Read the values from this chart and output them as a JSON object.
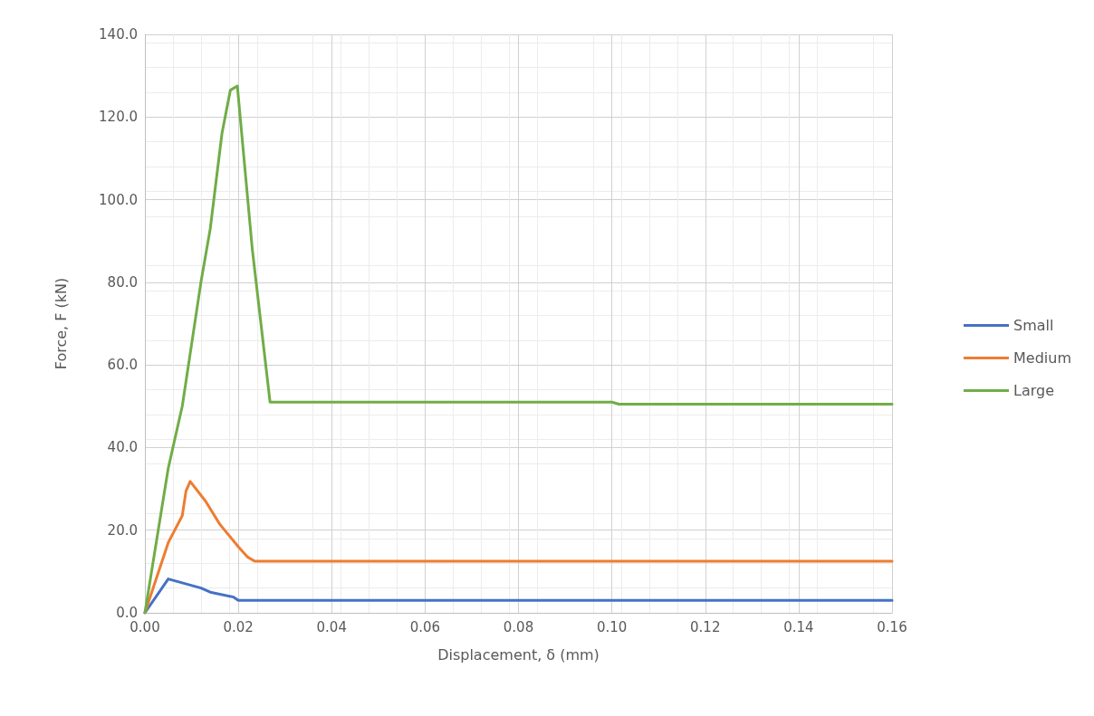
{
  "chart_data": {
    "type": "line",
    "xlabel": "Displacement, δ (mm)",
    "ylabel": "Force, F (kN)",
    "xlim": [
      0,
      0.16
    ],
    "xticks": [
      {
        "value": 0,
        "label": "0.00"
      },
      {
        "value": 0.02,
        "label": "0.02"
      },
      {
        "value": 0.04,
        "label": "0.04"
      },
      {
        "value": 0.06,
        "label": "0.06"
      },
      {
        "value": 0.08,
        "label": "0.08"
      },
      {
        "value": 0.1,
        "label": "0.10"
      },
      {
        "value": 0.12,
        "label": "0.12"
      },
      {
        "value": 0.14,
        "label": "0.14"
      },
      {
        "value": 0.16,
        "label": "0.16"
      }
    ],
    "ylim": [
      0,
      140
    ],
    "yticks": [
      {
        "value": 0,
        "label": "0.0"
      },
      {
        "value": 20,
        "label": "20.0"
      },
      {
        "value": 40,
        "label": "40.0"
      },
      {
        "value": 60,
        "label": "60.0"
      },
      {
        "value": 80,
        "label": "80.0"
      },
      {
        "value": 100,
        "label": "100.0"
      },
      {
        "value": 120,
        "label": "120.0"
      },
      {
        "value": 140,
        "label": "140.0"
      }
    ],
    "grid": true,
    "legend": "right",
    "marker": "none",
    "line_style": "solid",
    "series": [
      {
        "name": "Small",
        "color": "#4472c4",
        "x": [
          0,
          0.005,
          0.012,
          0.014,
          0.019,
          0.02,
          0.16
        ],
        "values": [
          0,
          8.2,
          6,
          5,
          3.8,
          3,
          3
        ]
      },
      {
        "name": "Medium",
        "color": "#ed7d31",
        "x": [
          0,
          0.005,
          0.008,
          0.0088,
          0.0097,
          0.013,
          0.016,
          0.02,
          0.022,
          0.0235,
          0.16
        ],
        "values": [
          0,
          17,
          23.5,
          29.5,
          31.8,
          27,
          21.5,
          16,
          13.5,
          12.5,
          12.5
        ]
      },
      {
        "name": "Large",
        "color": "#70ad47",
        "x": [
          0,
          0.005,
          0.008,
          0.012,
          0.014,
          0.0165,
          0.0183,
          0.0198,
          0.023,
          0.0268,
          0.1,
          0.1015,
          0.16
        ],
        "values": [
          0,
          35,
          50,
          80,
          93,
          116,
          126.5,
          127.5,
          88,
          51,
          51,
          50.5,
          50.5
        ]
      }
    ]
  }
}
